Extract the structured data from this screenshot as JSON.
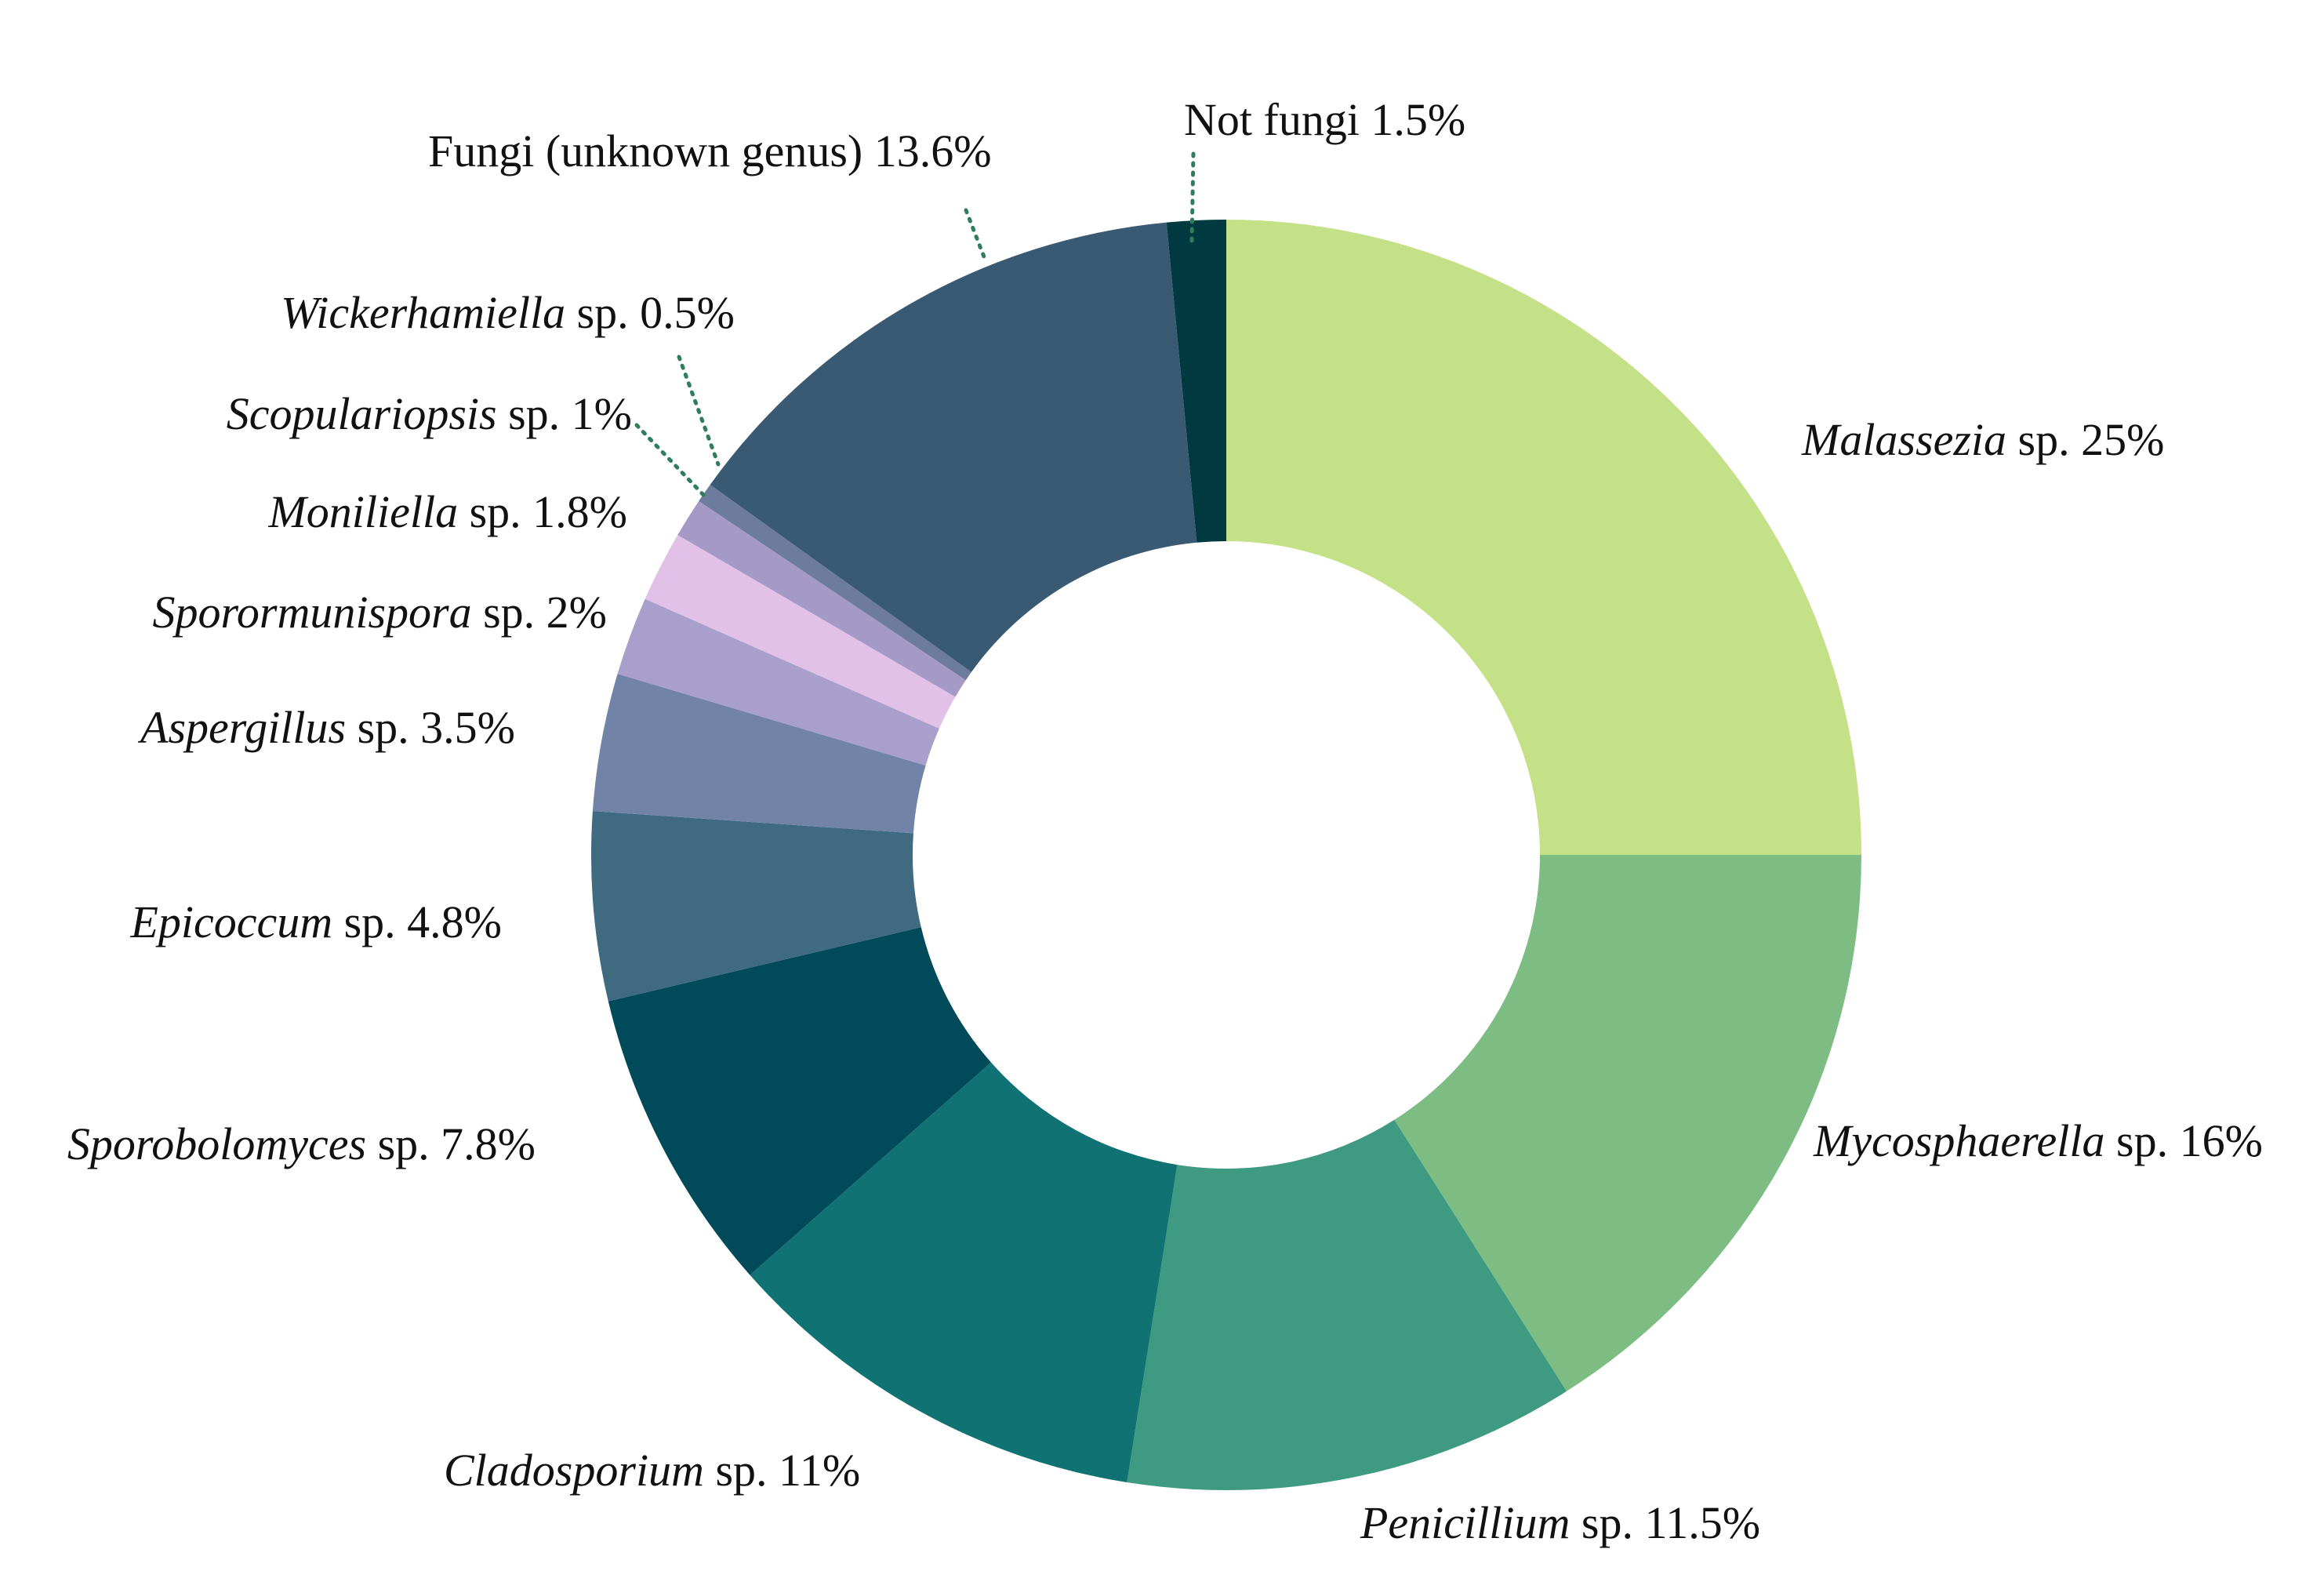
{
  "chart_data": {
    "type": "pie",
    "style": "donut",
    "title": "",
    "start": "12 o'clock",
    "direction": "clockwise",
    "slices": [
      {
        "label": "Malassezia sp. 25%",
        "genus": "Malassezia",
        "suffix": " sp. 25%",
        "value": 25,
        "color": "#c5e187"
      },
      {
        "label": "Mycosphaerella sp. 16%",
        "genus": "Mycosphaerella",
        "suffix": " sp. 16%",
        "value": 16,
        "color": "#7dbd83"
      },
      {
        "label": "Penicillium sp. 11.5%",
        "genus": "Penicillium",
        "suffix": " sp. 11.5%",
        "value": 11.5,
        "color": "#3e9a81"
      },
      {
        "label": "Cladosporium sp. 11%",
        "genus": "Cladosporium",
        "suffix": " sp. 11%",
        "value": 11,
        "color": "#107272"
      },
      {
        "label": "Sporobolomyces sp. 7.8%",
        "genus": "Sporobolomyces",
        "suffix": " sp. 7.8%",
        "value": 7.8,
        "color": "#004a5a"
      },
      {
        "label": "Epicoccum sp. 4.8%",
        "genus": "Epicoccum",
        "suffix": " sp. 4.8%",
        "value": 4.8,
        "color": "#3f6a80"
      },
      {
        "label": "Aspergillus sp. 3.5%",
        "genus": "Aspergillus",
        "suffix": " sp. 3.5%",
        "value": 3.5,
        "color": "#7184a8"
      },
      {
        "label": "Sporormunispora sp. 2%",
        "genus": "Sporormunispora",
        "suffix": " sp. 2%",
        "value": 2,
        "color": "#a99fcb"
      },
      {
        "label": "Moniliella sp. 1.8%",
        "genus": "Moniliella",
        "suffix": " sp. 1.8%",
        "value": 1.8,
        "color": "#e1c1e8"
      },
      {
        "label": "Scopulariopsis sp. 1%",
        "genus": "Scopulariopsis",
        "suffix": " sp. 1%",
        "value": 1,
        "color": "#a49ac5"
      },
      {
        "label": "Wickerhamiella sp. 0.5%",
        "genus": "Wickerhamiella",
        "suffix": " sp. 0.5%",
        "value": 0.5,
        "color": "#6d7b9c"
      },
      {
        "label": "Fungi (unknown genus) 13.6%",
        "genus": "",
        "suffix": "Fungi (unknown genus) 13.6%",
        "value": 13.6,
        "color": "#3a5a74"
      },
      {
        "label": "Not fungi 1.5%",
        "genus": "",
        "suffix": "Not fungi 1.5%",
        "value": 1.5,
        "color": "#003a40"
      }
    ],
    "leader_lines": [
      "Fungi (unknown genus) 13.6%",
      "Not fungi 1.5%",
      "Wickerhamiella sp. 0.5%",
      "Scopulariopsis sp. 1%"
    ],
    "leader_color": "#2e7d5b"
  }
}
